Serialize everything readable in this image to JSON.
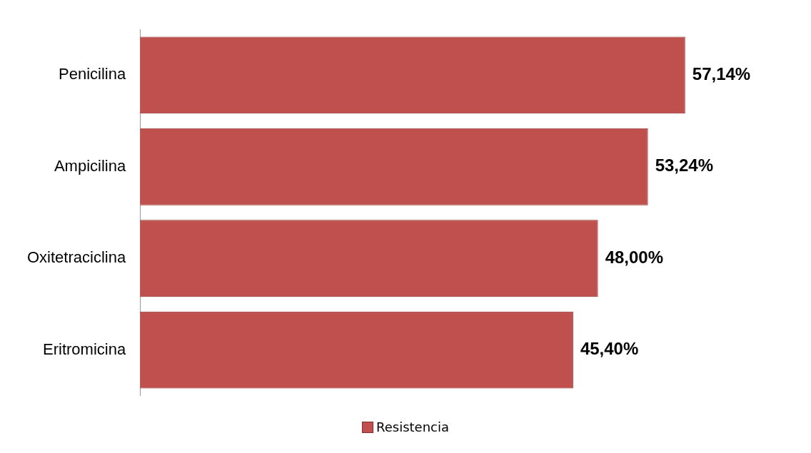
{
  "chart_data": {
    "type": "bar",
    "orientation": "horizontal",
    "categories": [
      "Penicilina",
      "Ampicilina",
      "Oxitetraciclina",
      "Eritromicina"
    ],
    "series": [
      {
        "name": "Resistencia",
        "color": "#c0504d",
        "values": [
          57.14,
          53.24,
          48.0,
          45.4
        ],
        "value_labels": [
          "57,14%",
          "53,24%",
          "48,00%",
          "45,40%"
        ]
      }
    ],
    "tick_labels": "y",
    "legend": "bottom"
  }
}
